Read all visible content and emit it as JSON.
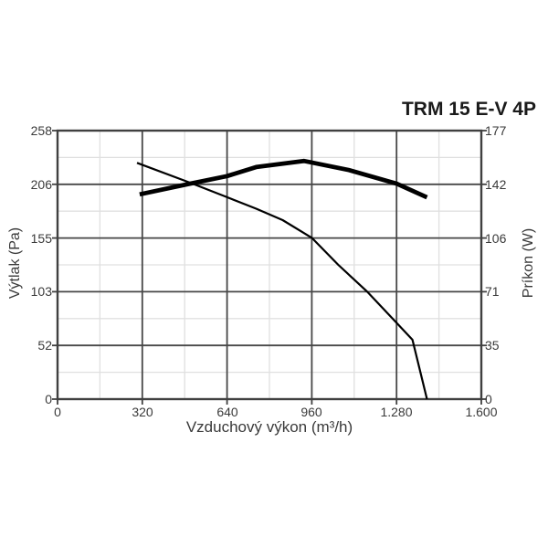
{
  "colors": {
    "background": "#ffffff",
    "text": "#3a3a3a",
    "title_text": "#1a1a1a",
    "axis_border": "#404040",
    "major_grid": "#474747",
    "minor_grid": "#e0e0e0",
    "curve": "#000000"
  },
  "chart_data": {
    "type": "line",
    "title": "TRM 15 E-V 4P",
    "xlabel": "Vzduchový výkon (m³/h)",
    "ylabel_left": "Výtlak (Pa)",
    "ylabel_right": "Príkon (W)",
    "xlim": [
      0,
      1600
    ],
    "ylim_left": [
      0,
      258
    ],
    "ylim_right": [
      0,
      177
    ],
    "x_ticks": [
      0,
      320,
      640,
      960,
      1280,
      1600
    ],
    "x_tick_labels": [
      "0",
      "320",
      "640",
      "960",
      "1.280",
      "1.600"
    ],
    "y_left_ticks": [
      258,
      206,
      155,
      103,
      52,
      0
    ],
    "y_left_tick_labels": [
      "258",
      "206",
      "155",
      "103",
      "52",
      "0"
    ],
    "y_right_ticks": [
      177,
      142,
      106,
      71,
      35,
      0
    ],
    "y_right_tick_labels": [
      "177",
      "142",
      "106",
      "71",
      "35",
      "0"
    ],
    "grid": {
      "major": true,
      "minor": true
    },
    "legend": "none",
    "series": [
      {
        "name": "Výtlak (Pa)",
        "id": "pressure-curve",
        "axis": "left",
        "line_width": 2.2,
        "x": [
          300,
          500,
          640,
          750,
          850,
          960,
          1060,
          1170,
          1270,
          1340,
          1395
        ],
        "y": [
          227,
          208,
          194,
          183,
          172,
          155,
          129,
          103,
          76,
          57,
          0
        ]
      },
      {
        "name": "Príkon (W)",
        "id": "power-curve",
        "axis": "right",
        "line_width": 4.8,
        "x": [
          310,
          500,
          640,
          750,
          930,
          1100,
          1280,
          1395
        ],
        "y": [
          135,
          142,
          147,
          153,
          157,
          151,
          142,
          133
        ]
      }
    ]
  }
}
